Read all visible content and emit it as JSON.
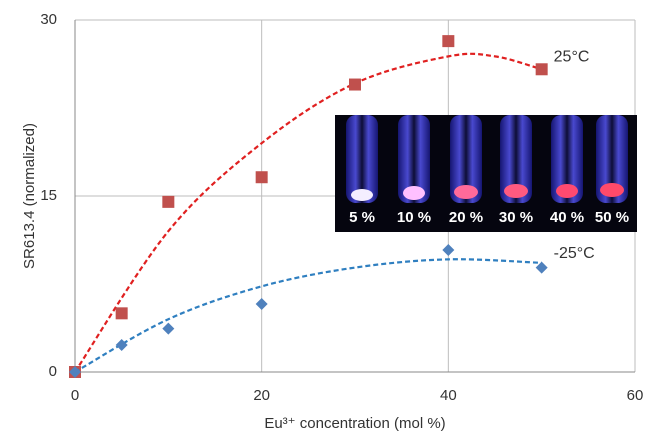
{
  "chart_data": {
    "type": "scatter",
    "x_label": "Eu³⁺ concentration (mol %)",
    "y_label": "SR613.4 (normalized)",
    "xlim": [
      0,
      60
    ],
    "xticks": [
      0,
      20,
      40,
      60
    ],
    "ylim": [
      0,
      30
    ],
    "yticks": [
      0,
      15,
      30
    ],
    "grid": true,
    "series": [
      {
        "name": "25°C",
        "color": "#c0504d",
        "marker": "square",
        "x": [
          0,
          5,
          10,
          20,
          30,
          40,
          50
        ],
        "values": [
          0,
          5,
          14.5,
          16.6,
          24.5,
          28.2,
          25.8
        ],
        "trend": {
          "color": "#e02020",
          "x": [
            0,
            10,
            20,
            30,
            40,
            45,
            50
          ],
          "values": [
            0,
            12,
            19.5,
            24.6,
            26.9,
            26.9,
            25.8
          ]
        }
      },
      {
        "name": "-25°C",
        "color": "#4f81bd",
        "marker": "diamond",
        "x": [
          0,
          5,
          10,
          20,
          40,
          50
        ],
        "values": [
          0,
          2.3,
          3.7,
          5.8,
          10.4,
          8.9
        ],
        "trend": {
          "color": "#2f7fc0",
          "x": [
            0,
            10,
            20,
            30,
            40,
            50
          ],
          "values": [
            0,
            4.5,
            7.3,
            8.9,
            9.6,
            9.3
          ]
        }
      }
    ],
    "inset_labels": [
      "5 %",
      "10 %",
      "20 %",
      "30 %",
      "40 %",
      "50 %"
    ]
  }
}
